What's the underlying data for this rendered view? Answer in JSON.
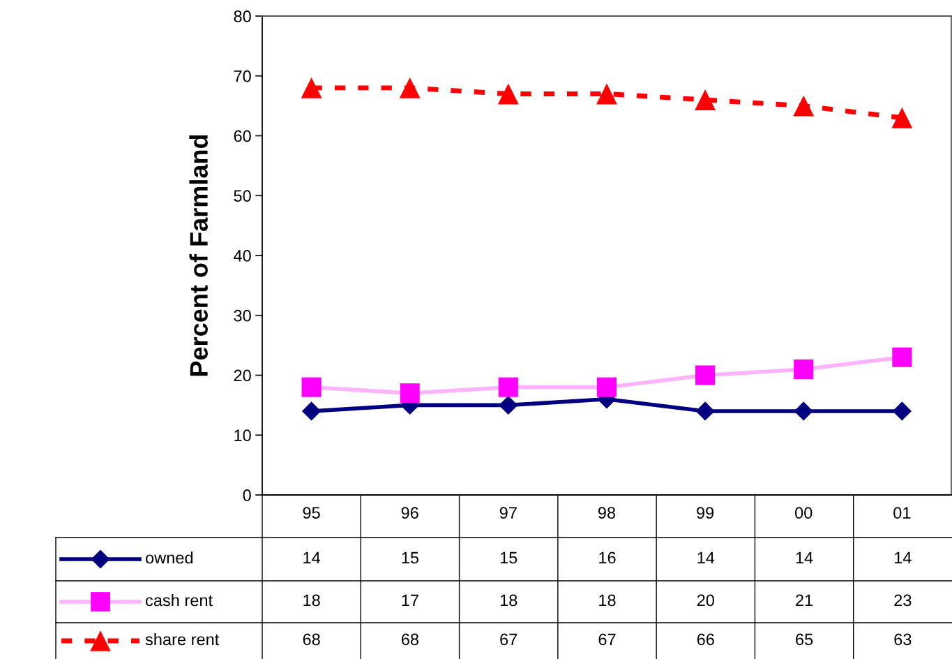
{
  "chart_data": {
    "type": "line",
    "ylabel": "Percent of Farmland",
    "categories": [
      "95",
      "96",
      "97",
      "98",
      "99",
      "00",
      "01"
    ],
    "series": [
      {
        "name": "owned",
        "color": "#000080",
        "marker": "diamond",
        "line_style": "solid",
        "values": [
          14,
          15,
          15,
          16,
          14,
          14,
          14
        ]
      },
      {
        "name": "cash rent",
        "color": "#ffb3ff",
        "colors": [
          "#ff00ff",
          "#ff00ff",
          "#ff00ff",
          "#ff00ff",
          "#ff00ff",
          "#ff00ff",
          "#ff00ff"
        ],
        "marker": "square",
        "line_style": "solid",
        "values": [
          18,
          17,
          18,
          18,
          20,
          21,
          23
        ]
      },
      {
        "name": "share rent",
        "color": "#ff0000",
        "marker": "triangle",
        "line_style": "dashed",
        "values": [
          68,
          68,
          67,
          67,
          66,
          65,
          63
        ]
      }
    ],
    "ylim": [
      0,
      80
    ],
    "yticks": [
      0,
      10,
      20,
      30,
      40,
      50,
      60,
      70,
      80
    ],
    "grid": false,
    "legend": "bottom",
    "data_labels": true
  }
}
